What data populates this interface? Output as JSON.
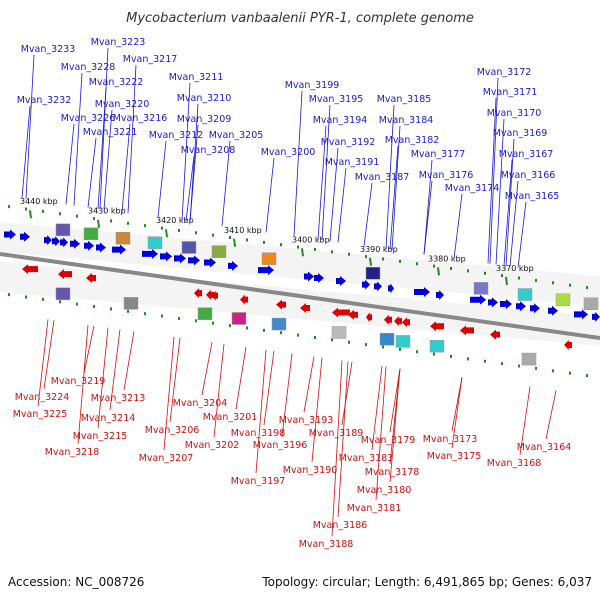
{
  "title": "Mycobacterium vanbaalenii PYR-1, complete genome",
  "footer": {
    "accession": "Accession: NC_008726",
    "topology": "Topology: circular; Length: 6,491,865 bp; Genes: 6,037"
  },
  "colors": {
    "forward": "#0000dd",
    "reverse": "#dd0000",
    "backbone": "#888888",
    "tick": "#228822",
    "label_forward": "#1a1acc",
    "label_reverse": "#cc1111"
  },
  "ticks": [
    "3440 kbp",
    "3430 kbp",
    "3420 kbp",
    "3410 kbp",
    "3400 kbp",
    "3390 kbp",
    "3380 kbp",
    "3370 kbp"
  ],
  "forward_genes": [
    "Mvan_3233",
    "Mvan_3223",
    "Mvan_3228",
    "Mvan_3217",
    "Mvan_3222",
    "Mvan_3211",
    "Mvan_3232",
    "Mvan_3220",
    "Mvan_3210",
    "Mvan_3226",
    "Mvan_3216",
    "Mvan_3209",
    "Mvan_3221",
    "Mvan_3212",
    "Mvan_3205",
    "Mvan_3208",
    "Mvan_3199",
    "Mvan_3195",
    "Mvan_3194",
    "Mvan_3192",
    "Mvan_3191",
    "Mvan_3200",
    "Mvan_3185",
    "Mvan_3184",
    "Mvan_3182",
    "Mvan_3187",
    "Mvan_3177",
    "Mvan_3176",
    "Mvan_3174",
    "Mvan_3172",
    "Mvan_3171",
    "Mvan_3170",
    "Mvan_3169",
    "Mvan_3167",
    "Mvan_3166",
    "Mvan_3165"
  ],
  "reverse_genes": [
    "Mvan_3219",
    "Mvan_3224",
    "Mvan_3225",
    "Mvan_3213",
    "Mvan_3214",
    "Mvan_3215",
    "Mvan_3218",
    "Mvan_3204",
    "Mvan_3206",
    "Mvan_3201",
    "Mvan_3202",
    "Mvan_3207",
    "Mvan_3198",
    "Mvan_3196",
    "Mvan_3193",
    "Mvan_3189",
    "Mvan_3190",
    "Mvan_3197",
    "Mvan_3183",
    "Mvan_3179",
    "Mvan_3178",
    "Mvan_3180",
    "Mvan_3181",
    "Mvan_3186",
    "Mvan_3188",
    "Mvan_3173",
    "Mvan_3175",
    "Mvan_3168",
    "Mvan_3164"
  ]
}
